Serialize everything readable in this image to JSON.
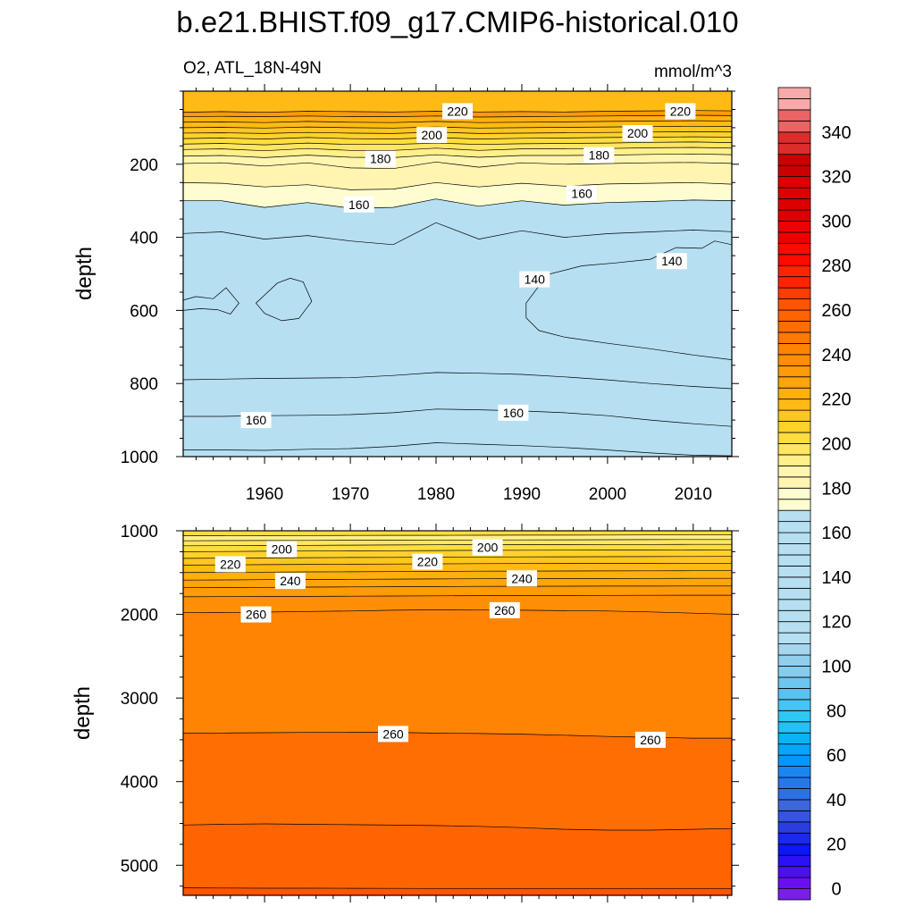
{
  "figure_title": "b.e21.BHIST.f09_g17.CMIP6-historical.010",
  "chart_data": [
    {
      "type": "contour",
      "title": "O2, ATL_18N-49N",
      "units": "mmol/m^3",
      "xlabel": "",
      "ylabel": "depth",
      "xlim": [
        1950.5,
        2014.5
      ],
      "ylim": [
        1000,
        0
      ],
      "x_ticks": [
        1960,
        1970,
        1980,
        1990,
        2000,
        2010
      ],
      "y_ticks": [
        200,
        400,
        600,
        800,
        1000
      ],
      "x": [
        1950,
        1955,
        1960,
        1965,
        1970,
        1975,
        1980,
        1985,
        1990,
        1995,
        2000,
        2005,
        2010,
        2015
      ],
      "band_boundaries": [
        {
          "level": 230,
          "depth": [
            58,
            56,
            58,
            55,
            56,
            57,
            55,
            57,
            56,
            57,
            55,
            54,
            53,
            54
          ]
        },
        {
          "level": 220,
          "depth": [
            70,
            69,
            70,
            68,
            70,
            70,
            68,
            71,
            70,
            69,
            68,
            67,
            66,
            67
          ]
        },
        {
          "level": 215,
          "depth": [
            85,
            84,
            86,
            83,
            85,
            86,
            83,
            86,
            85,
            84,
            83,
            82,
            81,
            82
          ]
        },
        {
          "level": 210,
          "depth": [
            100,
            99,
            101,
            98,
            100,
            101,
            98,
            101,
            100,
            99,
            98,
            97,
            96,
            97
          ]
        },
        {
          "level": 205,
          "depth": [
            115,
            114,
            116,
            113,
            115,
            116,
            112,
            116,
            115,
            114,
            113,
            112,
            111,
            112
          ]
        },
        {
          "level": 200,
          "depth": [
            130,
            128,
            131,
            127,
            130,
            131,
            127,
            131,
            129,
            128,
            127,
            126,
            125,
            126
          ]
        },
        {
          "level": 195,
          "depth": [
            145,
            143,
            147,
            142,
            146,
            146,
            142,
            146,
            144,
            143,
            142,
            140,
            139,
            141
          ]
        },
        {
          "level": 190,
          "depth": [
            160,
            158,
            163,
            157,
            162,
            162,
            156,
            162,
            158,
            158,
            157,
            155,
            154,
            156
          ]
        },
        {
          "level": 185,
          "depth": [
            178,
            176,
            182,
            175,
            181,
            182,
            174,
            181,
            176,
            176,
            175,
            173,
            172,
            174
          ]
        },
        {
          "level": 180,
          "depth": [
            198,
            196,
            205,
            196,
            210,
            212,
            194,
            208,
            196,
            200,
            198,
            196,
            195,
            198
          ]
        },
        {
          "level": 170,
          "depth": [
            250,
            252,
            262,
            256,
            270,
            268,
            250,
            262,
            252,
            260,
            254,
            252,
            250,
            255
          ]
        },
        {
          "level": 160,
          "depth": [
            300,
            300,
            318,
            305,
            320,
            318,
            295,
            315,
            300,
            312,
            305,
            302,
            298,
            300
          ]
        },
        {
          "level": 150,
          "depth": [
            390,
            385,
            405,
            395,
            410,
            420,
            360,
            405,
            382,
            400,
            390,
            385,
            380,
            385
          ]
        },
        {
          "level": 140,
          "depth": [
            790,
            788,
            786,
            785,
            784,
            778,
            770,
            772,
            775,
            782,
            790,
            800,
            808,
            815
          ]
        },
        {
          "level": 130,
          "depth": [
            890,
            890,
            888,
            887,
            885,
            880,
            870,
            872,
            875,
            880,
            888,
            900,
            910,
            918
          ]
        },
        {
          "level": 120,
          "depth": [
            982,
            982,
            983,
            980,
            978,
            972,
            962,
            966,
            970,
            975,
            982,
            990,
            996,
            998
          ]
        }
      ],
      "low_regions": [
        {
          "level": 140,
          "x": [
            1950.5,
            1952,
            1954,
            1955.5,
            1957,
            1956,
            1954.5,
            1952.5,
            1950.5
          ],
          "depth": [
            572,
            562,
            568,
            538,
            580,
            610,
            598,
            595,
            600
          ]
        },
        {
          "level": 140,
          "x": [
            1960,
            1961.5,
            1963,
            1964.5,
            1965.5,
            1964,
            1962,
            1960,
            1959
          ],
          "depth": [
            558,
            525,
            512,
            522,
            575,
            622,
            628,
            608,
            580
          ]
        },
        {
          "level": 140,
          "x": [
            1990.5,
            1993,
            1997,
            2001,
            2005,
            2008,
            2011,
            2012.5,
            2014.5,
            2014.5,
            2010,
            2005,
            2000,
            1995,
            1992,
            1990.5
          ],
          "depth": [
            580,
            502,
            478,
            470,
            460,
            428,
            430,
            410,
            420,
            735,
            722,
            705,
            690,
            673,
            655,
            620
          ]
        }
      ],
      "contour_labels": [
        {
          "text": "220",
          "x": 1982.5,
          "depth": 55
        },
        {
          "text": "220",
          "x": 2008.5,
          "depth": 55
        },
        {
          "text": "200",
          "x": 1979.5,
          "depth": 120
        },
        {
          "text": "200",
          "x": 2003.5,
          "depth": 115
        },
        {
          "text": "180",
          "x": 1973.5,
          "depth": 185
        },
        {
          "text": "180",
          "x": 1999,
          "depth": 175
        },
        {
          "text": "160",
          "x": 1971,
          "depth": 310
        },
        {
          "text": "160",
          "x": 1997,
          "depth": 280
        },
        {
          "text": "140",
          "x": 1991.5,
          "depth": 515
        },
        {
          "text": "140",
          "x": 2007.5,
          "depth": 465
        },
        {
          "text": "160",
          "x": 1959,
          "depth": 900
        },
        {
          "text": "160",
          "x": 1989,
          "depth": 880
        }
      ]
    },
    {
      "type": "contour",
      "xlim": [
        1950.5,
        2014.5
      ],
      "ylim": [
        5360,
        1000
      ],
      "y_ticks": [
        1000,
        2000,
        3000,
        4000,
        5000
      ],
      "ylabel": "depth",
      "x": [
        1950,
        1955,
        1960,
        1965,
        1970,
        1975,
        1980,
        1985,
        1990,
        1995,
        2000,
        2005,
        2010,
        2015
      ],
      "band_boundaries": [
        {
          "level": 190,
          "depth": [
            1060,
            1060,
            1058,
            1057,
            1056,
            1055,
            1054,
            1053,
            1052,
            1052,
            1051,
            1050,
            1050,
            1050
          ]
        },
        {
          "level": 195,
          "depth": [
            1120,
            1118,
            1117,
            1115,
            1113,
            1112,
            1110,
            1110,
            1109,
            1108,
            1107,
            1106,
            1105,
            1105
          ]
        },
        {
          "level": 200,
          "depth": [
            1180,
            1178,
            1176,
            1174,
            1172,
            1170,
            1168,
            1167,
            1166,
            1165,
            1164,
            1163,
            1162,
            1162
          ]
        },
        {
          "level": 205,
          "depth": [
            1250,
            1248,
            1245,
            1243,
            1240,
            1238,
            1236,
            1234,
            1233,
            1232,
            1231,
            1230,
            1229,
            1228
          ]
        },
        {
          "level": 210,
          "depth": [
            1330,
            1328,
            1325,
            1322,
            1320,
            1318,
            1315,
            1313,
            1312,
            1311,
            1310,
            1309,
            1308,
            1307
          ]
        },
        {
          "level": 215,
          "depth": [
            1410,
            1408,
            1405,
            1402,
            1400,
            1398,
            1395,
            1393,
            1392,
            1391,
            1390,
            1389,
            1388,
            1388
          ]
        },
        {
          "level": 220,
          "depth": [
            1500,
            1498,
            1495,
            1492,
            1490,
            1488,
            1485,
            1483,
            1482,
            1481,
            1480,
            1479,
            1478,
            1478
          ]
        },
        {
          "level": 225,
          "depth": [
            1590,
            1588,
            1585,
            1583,
            1580,
            1578,
            1576,
            1574,
            1573,
            1572,
            1571,
            1570,
            1569,
            1569
          ]
        },
        {
          "level": 230,
          "depth": [
            1680,
            1678,
            1676,
            1673,
            1671,
            1669,
            1667,
            1665,
            1664,
            1663,
            1662,
            1661,
            1660,
            1660
          ]
        },
        {
          "level": 235,
          "depth": [
            1790,
            1788,
            1786,
            1784,
            1782,
            1780,
            1778,
            1776,
            1775,
            1774,
            1773,
            1772,
            1771,
            1771
          ]
        },
        {
          "level": 240,
          "depth": [
            1980,
            1978,
            1972,
            1965,
            1960,
            1950,
            1945,
            1948,
            1950,
            1955,
            1960,
            1970,
            1985,
            2000
          ]
        },
        {
          "level": 250,
          "depth": [
            3420,
            3418,
            3415,
            3412,
            3410,
            3410,
            3420,
            3425,
            3432,
            3445,
            3460,
            3470,
            3480,
            3480
          ]
        },
        {
          "level": 255,
          "depth": [
            4520,
            4510,
            4505,
            4510,
            4515,
            4520,
            4525,
            4535,
            4550,
            4570,
            4580,
            4580,
            4570,
            4560
          ]
        },
        {
          "level": 260,
          "depth": [
            5270,
            5272,
            5274,
            5275,
            5276,
            5277,
            5278,
            5278,
            5278,
            5278,
            5278,
            5278,
            5278,
            5278
          ]
        }
      ],
      "contour_labels": [
        {
          "text": "200",
          "x": 1962,
          "depth": 1220
        },
        {
          "text": "200",
          "x": 1986,
          "depth": 1200
        },
        {
          "text": "220",
          "x": 1956,
          "depth": 1400
        },
        {
          "text": "220",
          "x": 1979,
          "depth": 1370
        },
        {
          "text": "240",
          "x": 1963,
          "depth": 1600
        },
        {
          "text": "240",
          "x": 1990,
          "depth": 1570
        },
        {
          "text": "260",
          "x": 1959,
          "depth": 2000
        },
        {
          "text": "260",
          "x": 1988,
          "depth": 1950
        },
        {
          "text": "260",
          "x": 1975,
          "depth": 3430
        },
        {
          "text": "260",
          "x": 2005,
          "depth": 3500
        }
      ]
    }
  ],
  "colorbar": {
    "levels": [
      -5,
      0,
      5,
      10,
      15,
      20,
      25,
      30,
      35,
      40,
      45,
      50,
      55,
      60,
      65,
      70,
      75,
      80,
      85,
      90,
      95,
      100,
      105,
      110,
      115,
      120,
      125,
      130,
      135,
      140,
      145,
      150,
      155,
      160,
      165,
      170,
      175,
      180,
      185,
      190,
      195,
      200,
      205,
      210,
      215,
      220,
      225,
      230,
      235,
      240,
      245,
      250,
      255,
      260,
      265,
      270,
      275,
      280,
      285,
      290,
      295,
      300,
      305,
      310,
      315,
      320,
      325,
      330,
      335,
      340,
      345,
      350,
      355,
      360
    ],
    "colors_bottom_to_top": [
      "#7a1fe8",
      "#6a10f0",
      "#4b0ff0",
      "#2a12f5",
      "#0d16f5",
      "#1a2ae8",
      "#2a3ee0",
      "#3555dc",
      "#3d66dc",
      "#2f70e4",
      "#2478ec",
      "#1a86f2",
      "#0a96f8",
      "#06a6f8",
      "#08b4f5",
      "#22c2f5",
      "#2ec8f5",
      "#44c6f2",
      "#5ac2f2",
      "#6cc6ef",
      "#84cdee",
      "#92cfed",
      "#a4d6ef",
      "#b6dff2",
      "#fefdd0",
      "#fff5b0",
      "#fff08a",
      "#ffe662",
      "#ffdd40",
      "#ffd22a",
      "#ffc620",
      "#ffbb14",
      "#ffb00c",
      "#ffa50c",
      "#ff9a08",
      "#ff8f06",
      "#ff8404",
      "#ff7904",
      "#ff6e02",
      "#ff6402",
      "#ff5502",
      "#ff3c00",
      "#ff2400",
      "#ff0a00",
      "#ee0000",
      "#dd0000",
      "#cc0000",
      "#dd2c2c",
      "#ea6464",
      "#f7aaaa"
    ],
    "color_levels": [
      -5,
      0,
      5,
      10,
      15,
      20,
      25,
      30,
      35,
      40,
      45,
      50,
      55,
      60,
      65,
      70,
      75,
      80,
      85,
      90,
      95,
      100,
      105,
      110,
      170,
      180,
      190,
      195,
      200,
      205,
      210,
      215,
      220,
      225,
      230,
      235,
      240,
      245,
      250,
      255,
      260,
      265,
      270,
      280,
      290,
      300,
      320,
      330,
      340,
      350,
      360
    ],
    "tick_labels": [
      "0",
      "20",
      "40",
      "60",
      "80",
      "100",
      "120",
      "140",
      "160",
      "180",
      "200",
      "220",
      "240",
      "260",
      "280",
      "300",
      "320",
      "340"
    ],
    "tick_values": [
      0,
      20,
      40,
      60,
      80,
      100,
      120,
      140,
      160,
      180,
      200,
      220,
      240,
      260,
      280,
      300,
      320,
      340
    ]
  }
}
